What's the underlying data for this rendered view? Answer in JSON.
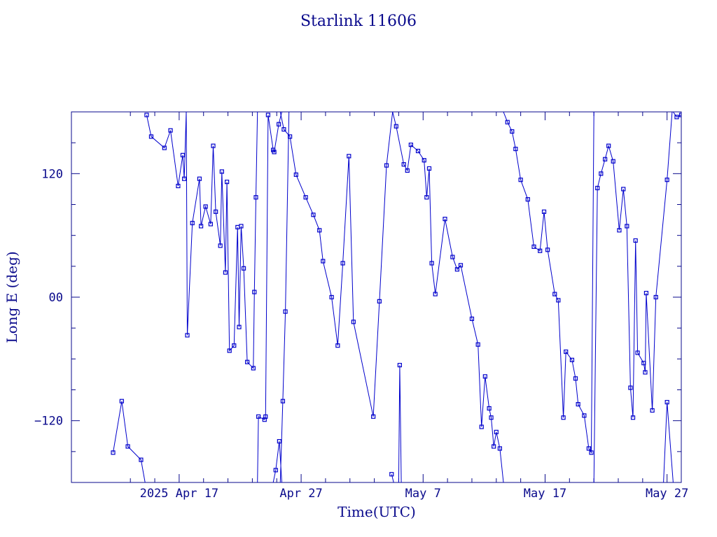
{
  "chart_data": {
    "type": "scatter",
    "title": "Starlink 11606",
    "xlabel": "Time(UTC)",
    "ylabel": "Long E (deg)",
    "x_unit": "date (UTC, 2025)",
    "xlim": [
      "2025-04-08T04:00",
      "2025-05-28T04:00"
    ],
    "ylim": [
      -180,
      180
    ],
    "grid": false,
    "legend": "none",
    "color": "#0000cc",
    "axis_color": "#0a0a8c",
    "x_ticks": [
      {
        "date": "2025-04-17",
        "label": "2025 Apr 17"
      },
      {
        "date": "2025-04-27",
        "label": "Apr 27"
      },
      {
        "date": "2025-05-07",
        "label": "May  7"
      },
      {
        "date": "2025-05-17",
        "label": "May 17"
      },
      {
        "date": "2025-05-27",
        "label": "May 27"
      }
    ],
    "x_minor_ticks": [
      "2025-04-13",
      "2025-04-15",
      "2025-04-19",
      "2025-04-21",
      "2025-04-23",
      "2025-04-25",
      "2025-04-29",
      "2025-05-01",
      "2025-05-03",
      "2025-05-05",
      "2025-05-09",
      "2025-05-11",
      "2025-05-13",
      "2025-05-15",
      "2025-05-19",
      "2025-05-21",
      "2025-05-23",
      "2025-05-25"
    ],
    "y_ticks": [
      {
        "value": 120,
        "label": "120"
      },
      {
        "value": 0,
        "label": "00"
      },
      {
        "value": -120,
        "label": "−120"
      }
    ],
    "y_minor_ticks": [
      150,
      90,
      60,
      30,
      -30,
      -60,
      -90,
      -150
    ],
    "series": [
      {
        "points": [
          [
            "2025-04-14T08:00",
            177
          ],
          [
            "2025-04-14T17:00",
            156
          ],
          [
            "2025-04-15T19:00",
            145
          ],
          [
            "2025-04-16T07:00",
            162
          ],
          [
            "2025-04-16T22:00",
            108
          ],
          [
            "2025-04-17T07:00",
            138
          ],
          [
            "2025-04-17T10:00",
            115
          ],
          [
            "2025-04-17T14:00",
            180
          ],
          [
            "2025-04-17T16:00",
            -37
          ],
          [
            "2025-04-18T02:00",
            72
          ],
          [
            "2025-04-18T16:00",
            115
          ],
          [
            "2025-04-18T19:00",
            69
          ],
          [
            "2025-04-19T04:00",
            88
          ],
          [
            "2025-04-19T14:00",
            71
          ],
          [
            "2025-04-19T19:00",
            147
          ],
          [
            "2025-04-20T00:00",
            83
          ],
          [
            "2025-04-20T09:00",
            50
          ],
          [
            "2025-04-20T12:00",
            122
          ],
          [
            "2025-04-20T19:00",
            24
          ],
          [
            "2025-04-20T22:00",
            112
          ],
          [
            "2025-04-21T03:00",
            -52
          ],
          [
            "2025-04-21T12:00",
            -47
          ],
          [
            "2025-04-21T19:00",
            68
          ],
          [
            "2025-04-21T22:00",
            -29
          ],
          [
            "2025-04-22T02:00",
            69
          ],
          [
            "2025-04-22T07:00",
            28
          ],
          [
            "2025-04-22T14:00",
            -63
          ],
          [
            "2025-04-23T02:00",
            -69
          ],
          [
            "2025-04-23T04:00",
            5
          ],
          [
            "2025-04-23T07:00",
            97
          ],
          [
            "2025-04-23T10:00",
            180
          ]
        ]
      },
      {
        "points": [
          [
            "2025-04-14T05:00",
            -180
          ],
          [
            "2025-04-13T21:00",
            -158
          ],
          [
            "2025-04-12T19:00",
            -145
          ],
          [
            "2025-04-12T07:00",
            -101
          ],
          [
            "2025-04-11T14:00",
            -151
          ]
        ]
      },
      {
        "points": [
          [
            "2025-04-23T10:00",
            -180
          ],
          [
            "2025-04-23T12:00",
            -116
          ],
          [
            "2025-04-24T00:00",
            -119
          ],
          [
            "2025-04-24T02:00",
            -116
          ],
          [
            "2025-04-24T07:00",
            177
          ],
          [
            "2025-04-24T17:00",
            143
          ],
          [
            "2025-04-24T19:00",
            141
          ],
          [
            "2025-04-25T04:00",
            168
          ],
          [
            "2025-04-25T10:00",
            180
          ]
        ]
      },
      {
        "points": [
          [
            "2025-04-25T10:00",
            -180
          ],
          [
            "2025-04-25T05:00",
            -140
          ],
          [
            "2025-04-24T22:00",
            -168
          ],
          [
            "2025-04-24T17:00",
            -180
          ]
        ]
      },
      {
        "points": [
          [
            "2025-04-25T07:00",
            180
          ],
          [
            "2025-04-25T14:00",
            163
          ],
          [
            "2025-04-26T02:00",
            156
          ],
          [
            "2025-04-26T14:00",
            119
          ],
          [
            "2025-04-27T09:00",
            97
          ],
          [
            "2025-04-28T00:00",
            80
          ],
          [
            "2025-04-28T12:00",
            65
          ],
          [
            "2025-04-28T19:00",
            35
          ],
          [
            "2025-04-29T12:00",
            0
          ],
          [
            "2025-04-30T00:00",
            -47
          ],
          [
            "2025-04-30T10:00",
            33
          ],
          [
            "2025-04-30T22:00",
            137
          ],
          [
            "2025-05-01T07:00",
            -24
          ],
          [
            "2025-05-02T22:00",
            -116
          ],
          [
            "2025-05-03T10:00",
            -4
          ],
          [
            "2025-05-04T00:00",
            128
          ],
          [
            "2025-05-04T12:00",
            180
          ]
        ]
      },
      {
        "points": [
          [
            "2025-04-25T07:00",
            -180
          ],
          [
            "2025-04-25T12:00",
            -101
          ],
          [
            "2025-04-25T17:00",
            -14
          ],
          [
            "2025-04-26T00:00",
            180
          ]
        ]
      },
      {
        "points": [
          [
            "2025-05-04T14:00",
            -180
          ],
          [
            "2025-05-04T10:00",
            -172
          ]
        ]
      },
      {
        "points": [
          [
            "2025-05-04T12:00",
            180
          ],
          [
            "2025-05-04T19:00",
            166
          ],
          [
            "2025-05-05T10:00",
            129
          ],
          [
            "2025-05-05T17:00",
            123
          ],
          [
            "2025-05-06T00:00",
            148
          ],
          [
            "2025-05-06T14:00",
            142
          ],
          [
            "2025-05-07T02:00",
            133
          ],
          [
            "2025-05-07T07:00",
            97
          ],
          [
            "2025-05-07T12:00",
            125
          ],
          [
            "2025-05-07T17:00",
            33
          ],
          [
            "2025-05-08T00:00",
            3
          ],
          [
            "2025-05-08T19:00",
            76
          ],
          [
            "2025-05-09T10:00",
            39
          ],
          [
            "2025-05-09T19:00",
            27
          ],
          [
            "2025-05-10T02:00",
            31
          ],
          [
            "2025-05-11T00:00",
            -21
          ],
          [
            "2025-05-11T12:00",
            -46
          ],
          [
            "2025-05-11T19:00",
            -126
          ],
          [
            "2025-05-12T02:00",
            -77
          ],
          [
            "2025-05-12T10:00",
            -108
          ],
          [
            "2025-05-12T14:00",
            -117
          ],
          [
            "2025-05-12T19:00",
            -145
          ],
          [
            "2025-05-13T00:00",
            -131
          ],
          [
            "2025-05-13T07:00",
            -147
          ],
          [
            "2025-05-13T14:00",
            -180
          ]
        ]
      },
      {
        "points": [
          [
            "2025-05-05T00:00",
            -180
          ],
          [
            "2025-05-05T02:00",
            -66
          ],
          [
            "2025-05-05T05:00",
            -180
          ]
        ]
      },
      {
        "points": [
          [
            "2025-05-13T14:00",
            180
          ],
          [
            "2025-05-13T22:00",
            170
          ],
          [
            "2025-05-14T07:00",
            161
          ],
          [
            "2025-05-14T14:00",
            144
          ],
          [
            "2025-05-15T00:00",
            114
          ],
          [
            "2025-05-15T14:00",
            95
          ],
          [
            "2025-05-16T02:00",
            49
          ],
          [
            "2025-05-16T14:00",
            45
          ],
          [
            "2025-05-16T22:00",
            83
          ],
          [
            "2025-05-17T05:00",
            46
          ],
          [
            "2025-05-17T19:00",
            3
          ],
          [
            "2025-05-18T02:00",
            -3
          ],
          [
            "2025-05-18T12:00",
            -117
          ],
          [
            "2025-05-18T17:00",
            -53
          ],
          [
            "2025-05-19T05:00",
            -61
          ],
          [
            "2025-05-19T12:00",
            -79
          ],
          [
            "2025-05-19T17:00",
            -104
          ],
          [
            "2025-05-20T05:00",
            -115
          ],
          [
            "2025-05-20T14:00",
            -147
          ],
          [
            "2025-05-20T19:00",
            -151
          ],
          [
            "2025-05-21T00:00",
            180
          ]
        ]
      },
      {
        "points": [
          [
            "2025-05-21T00:00",
            -180
          ],
          [
            "2025-05-21T07:00",
            106
          ],
          [
            "2025-05-21T14:00",
            120
          ],
          [
            "2025-05-21T22:00",
            134
          ],
          [
            "2025-05-22T05:00",
            147
          ],
          [
            "2025-05-22T14:00",
            132
          ],
          [
            "2025-05-23T02:00",
            65
          ],
          [
            "2025-05-23T10:00",
            105
          ],
          [
            "2025-05-23T17:00",
            69
          ],
          [
            "2025-05-24T00:00",
            -88
          ],
          [
            "2025-05-24T05:00",
            -117
          ],
          [
            "2025-05-24T10:00",
            55
          ],
          [
            "2025-05-24T14:00",
            -54
          ],
          [
            "2025-05-25T02:00",
            -64
          ],
          [
            "2025-05-25T05:00",
            -73
          ],
          [
            "2025-05-25T07:00",
            4
          ],
          [
            "2025-05-25T19:00",
            -110
          ],
          [
            "2025-05-26T02:00",
            0
          ],
          [
            "2025-05-27T00:00",
            114
          ],
          [
            "2025-05-27T10:00",
            180
          ]
        ]
      },
      {
        "points": [
          [
            "2025-05-26T17:00",
            -180
          ],
          [
            "2025-05-27T00:00",
            -102
          ],
          [
            "2025-05-27T12:00",
            -180
          ]
        ]
      },
      {
        "points": [
          [
            "2025-05-27T12:00",
            180
          ],
          [
            "2025-05-27T19:00",
            175
          ],
          [
            "2025-05-28T04:00",
            177
          ]
        ]
      }
    ]
  }
}
